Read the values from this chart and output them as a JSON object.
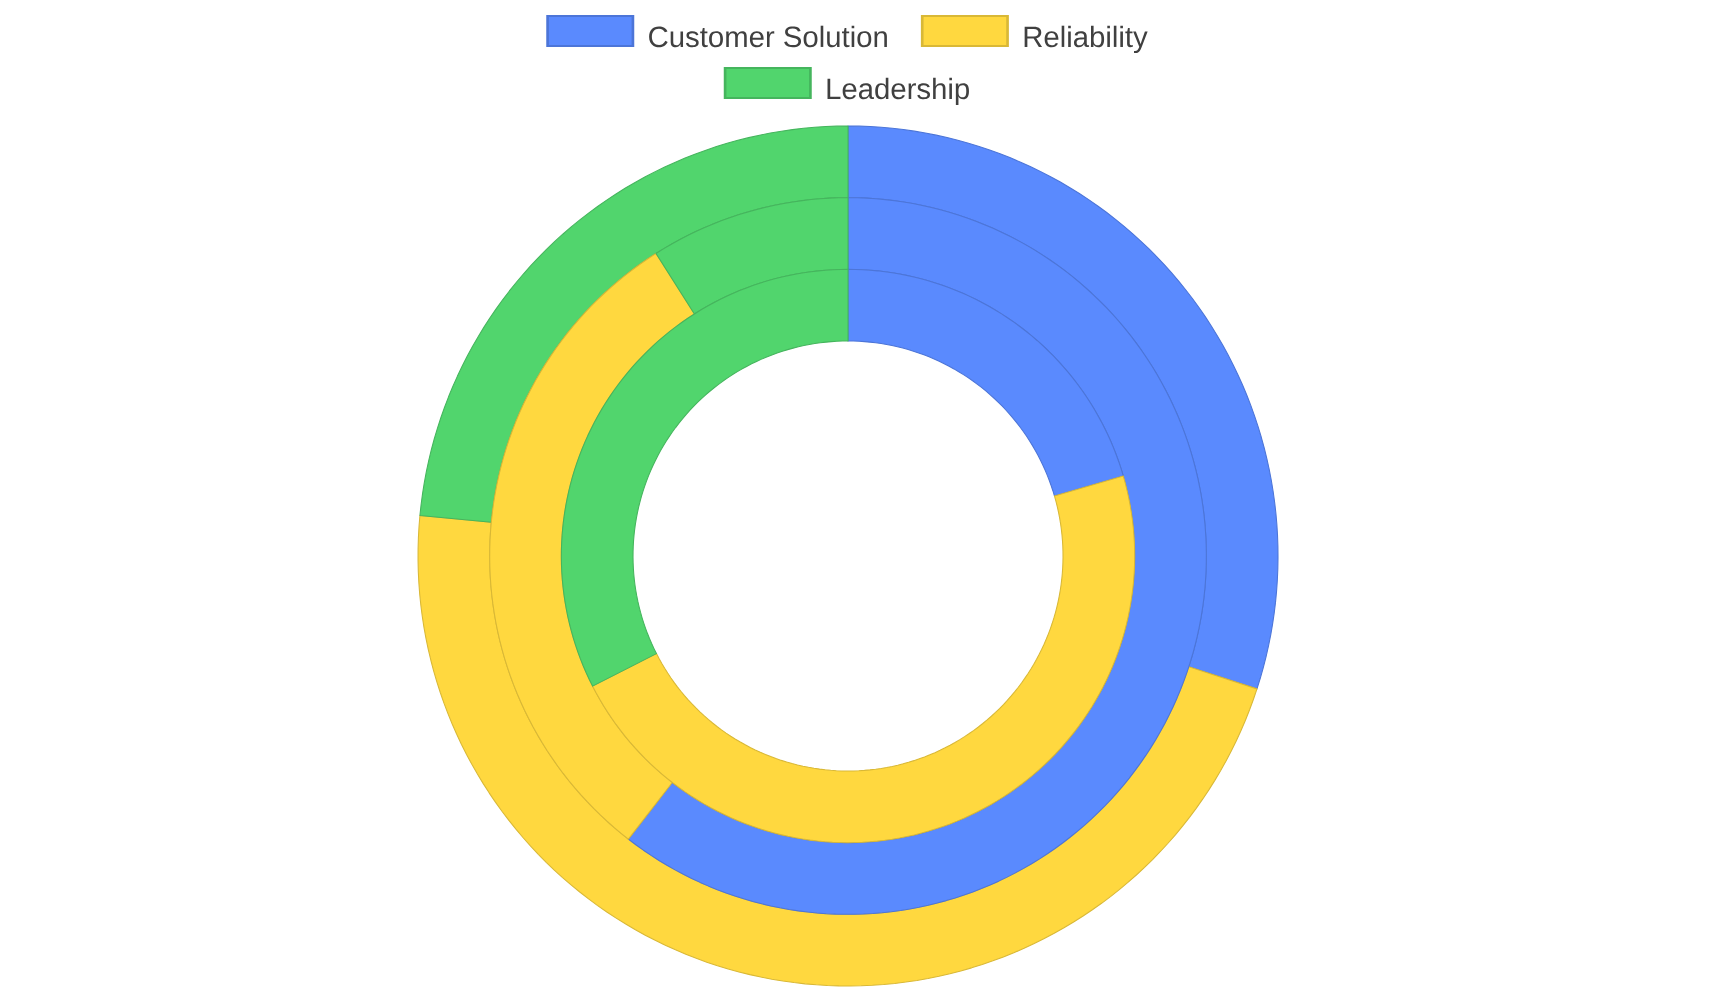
{
  "chart_data": {
    "type": "donut",
    "categories": [
      "Customer Solution",
      "Reliability",
      "Leadership"
    ],
    "colors": [
      "#5a8afe",
      "#ffd83f",
      "#51d56d"
    ],
    "legend": "top",
    "series": [
      {
        "values": [
          30,
          46.5,
          23.5
        ]
      },
      {
        "values": [
          60.5,
          30.5,
          9
        ]
      },
      {
        "values": [
          20.5,
          47,
          32.5
        ]
      }
    ]
  }
}
